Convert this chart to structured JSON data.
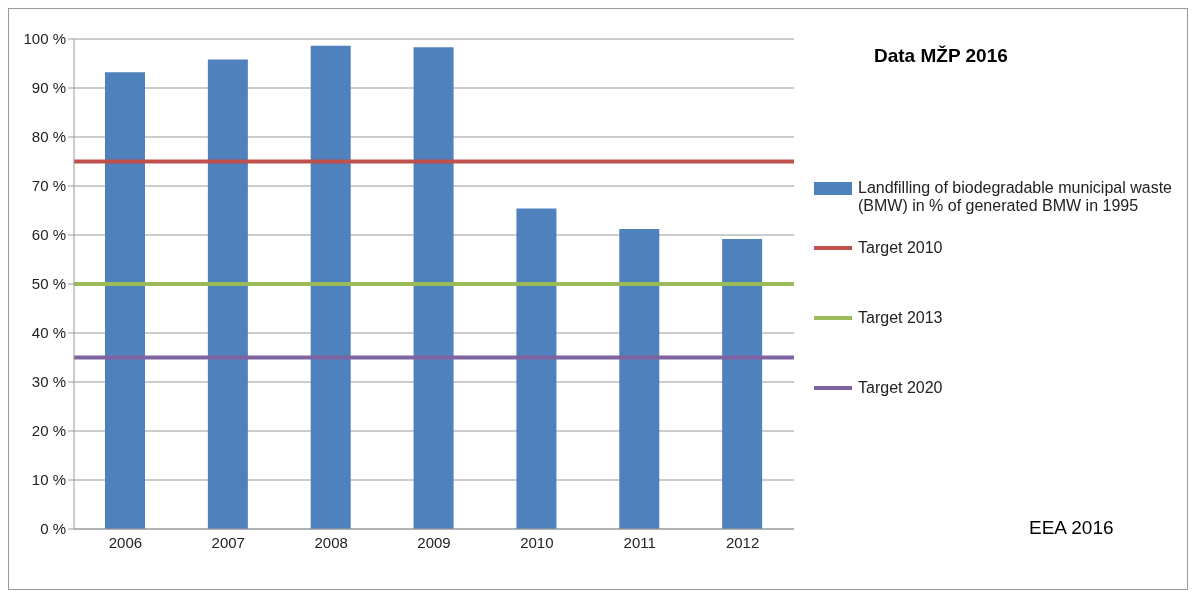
{
  "chart_data": {
    "type": "bar",
    "title": "Data MŽP 2016",
    "annotations": [
      "EEA 2016"
    ],
    "categories": [
      "2006",
      "2007",
      "2008",
      "2009",
      "2010",
      "2011",
      "2012"
    ],
    "series": [
      {
        "name": "Landfilling of biodegradable municipal waste (BMW) in % of generated BMW in 1995",
        "color": "#4f81bd",
        "values": [
          93.2,
          95.8,
          98.6,
          98.3,
          65.4,
          61.2,
          59.2
        ]
      }
    ],
    "ylim": [
      0,
      100
    ],
    "yticks": [
      {
        "value": 0,
        "label": "0 %"
      },
      {
        "value": 10,
        "label": "10 %"
      },
      {
        "value": 20,
        "label": "20 %"
      },
      {
        "value": 30,
        "label": "30 %"
      },
      {
        "value": 40,
        "label": "40 %"
      },
      {
        "value": 50,
        "label": "50 %"
      },
      {
        "value": 60,
        "label": "60 %"
      },
      {
        "value": 70,
        "label": "70 %"
      },
      {
        "value": 80,
        "label": "80 %"
      },
      {
        "value": 90,
        "label": "90 %"
      },
      {
        "value": 100,
        "label": "100 %"
      }
    ],
    "ref_lines": [
      {
        "axis": "y",
        "value": 75,
        "label": "Target 2010",
        "color": "#c0504d"
      },
      {
        "axis": "y",
        "value": 50,
        "label": "Target 2013",
        "color": "#9bbb59"
      },
      {
        "axis": "y",
        "value": 35,
        "label": "Target 2020",
        "color": "#8064a2"
      }
    ],
    "grid": "y",
    "legend": "right"
  }
}
